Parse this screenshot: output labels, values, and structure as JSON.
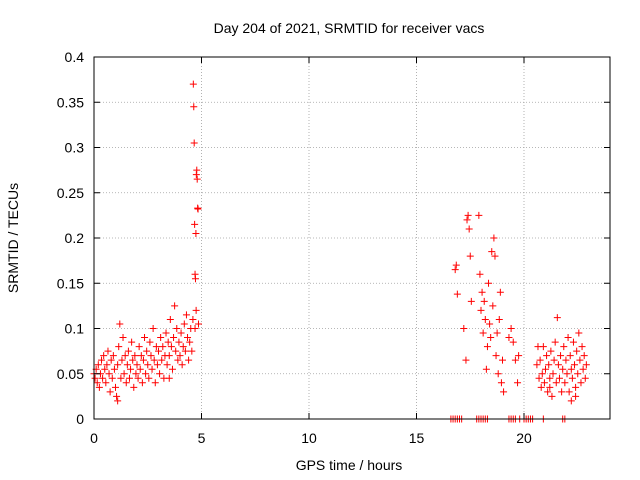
{
  "chart_data": {
    "type": "scatter",
    "title": "Day 204 of 2021, SRMTID for receiver vacs",
    "xlabel": "GPS time / hours",
    "ylabel": "SRMTID / TECUs",
    "xlim": [
      0,
      24
    ],
    "ylim": [
      0,
      0.4
    ],
    "xticks": [
      0,
      5,
      10,
      15,
      20
    ],
    "yticks": [
      0,
      0.05,
      0.1,
      0.15,
      0.2,
      0.25,
      0.3,
      0.35,
      0.4
    ],
    "xtick_labels": [
      "0",
      "5",
      "10",
      "15",
      "20"
    ],
    "ytick_labels": [
      "0",
      "0.05",
      "0.1",
      "0.15",
      "0.2",
      "0.25",
      "0.3",
      "0.35",
      "0.4"
    ],
    "grid": true,
    "marker": "+",
    "color": "#ff0000",
    "series": [
      {
        "name": "SRMTID",
        "points": [
          [
            0.0,
            0.05
          ],
          [
            0.05,
            0.045
          ],
          [
            0.1,
            0.055
          ],
          [
            0.15,
            0.04
          ],
          [
            0.2,
            0.06
          ],
          [
            0.25,
            0.035
          ],
          [
            0.3,
            0.05
          ],
          [
            0.35,
            0.065
          ],
          [
            0.4,
            0.045
          ],
          [
            0.45,
            0.07
          ],
          [
            0.5,
            0.055
          ],
          [
            0.55,
            0.04
          ],
          [
            0.6,
            0.06
          ],
          [
            0.65,
            0.075
          ],
          [
            0.7,
            0.05
          ],
          [
            0.75,
            0.03
          ],
          [
            0.8,
            0.065
          ],
          [
            0.85,
            0.045
          ],
          [
            0.9,
            0.07
          ],
          [
            0.95,
            0.055
          ],
          [
            1.0,
            0.035
          ],
          [
            1.05,
            0.025
          ],
          [
            1.1,
            0.06
          ],
          [
            1.15,
            0.08
          ],
          [
            1.2,
            0.105
          ],
          [
            1.25,
            0.045
          ],
          [
            1.3,
            0.065
          ],
          [
            1.35,
            0.09
          ],
          [
            1.4,
            0.05
          ],
          [
            1.45,
            0.07
          ],
          [
            1.5,
            0.04
          ],
          [
            1.55,
            0.06
          ],
          [
            1.6,
            0.075
          ],
          [
            1.65,
            0.045
          ],
          [
            1.7,
            0.055
          ],
          [
            1.75,
            0.085
          ],
          [
            1.8,
            0.065
          ],
          [
            1.85,
            0.035
          ],
          [
            1.9,
            0.07
          ],
          [
            1.95,
            0.05
          ],
          [
            2.0,
            0.06
          ],
          [
            2.05,
            0.045
          ],
          [
            2.1,
            0.08
          ],
          [
            2.15,
            0.055
          ],
          [
            2.2,
            0.07
          ],
          [
            2.25,
            0.04
          ],
          [
            2.3,
            0.065
          ],
          [
            2.35,
            0.09
          ],
          [
            2.4,
            0.05
          ],
          [
            2.45,
            0.075
          ],
          [
            2.5,
            0.06
          ],
          [
            2.55,
            0.045
          ],
          [
            2.6,
            0.085
          ],
          [
            2.65,
            0.07
          ],
          [
            2.7,
            0.055
          ],
          [
            2.75,
            0.1
          ],
          [
            2.8,
            0.065
          ],
          [
            2.85,
            0.04
          ],
          [
            2.9,
            0.08
          ],
          [
            2.95,
            0.06
          ],
          [
            3.0,
            0.075
          ],
          [
            3.05,
            0.05
          ],
          [
            3.1,
            0.09
          ],
          [
            3.15,
            0.065
          ],
          [
            3.2,
            0.08
          ],
          [
            3.25,
            0.045
          ],
          [
            3.3,
            0.07
          ],
          [
            3.35,
            0.095
          ],
          [
            3.4,
            0.06
          ],
          [
            3.45,
            0.085
          ],
          [
            3.5,
            0.07
          ],
          [
            3.55,
            0.11
          ],
          [
            3.6,
            0.08
          ],
          [
            3.65,
            0.055
          ],
          [
            3.7,
            0.09
          ],
          [
            3.75,
            0.125
          ],
          [
            3.8,
            0.075
          ],
          [
            3.85,
            0.1
          ],
          [
            3.9,
            0.065
          ],
          [
            3.95,
            0.085
          ],
          [
            4.0,
            0.07
          ],
          [
            4.05,
            0.095
          ],
          [
            4.1,
            0.06
          ],
          [
            4.15,
            0.08
          ],
          [
            4.2,
            0.105
          ],
          [
            4.25,
            0.075
          ],
          [
            4.3,
            0.115
          ],
          [
            4.35,
            0.09
          ],
          [
            4.4,
            0.065
          ],
          [
            4.45,
            0.085
          ],
          [
            4.5,
            0.1
          ],
          [
            4.55,
            0.075
          ],
          [
            4.6,
            0.11
          ],
          [
            4.62,
            0.37
          ],
          [
            4.64,
            0.345
          ],
          [
            4.66,
            0.305
          ],
          [
            4.68,
            0.215
          ],
          [
            4.7,
            0.16
          ],
          [
            4.72,
            0.155
          ],
          [
            4.74,
            0.205
          ],
          [
            4.76,
            0.27
          ],
          [
            4.78,
            0.275
          ],
          [
            4.8,
            0.265
          ],
          [
            4.82,
            0.233
          ],
          [
            4.84,
            0.232
          ],
          [
            4.86,
            0.105
          ],
          [
            4.7,
            0.1
          ],
          [
            4.75,
            0.12
          ],
          [
            1.1,
            0.02
          ],
          [
            3.5,
            0.045
          ],
          [
            16.6,
            0.0
          ],
          [
            16.7,
            0.0
          ],
          [
            16.8,
            0.0
          ],
          [
            16.9,
            0.0
          ],
          [
            17.0,
            0.0
          ],
          [
            17.1,
            0.0
          ],
          [
            17.8,
            0.0
          ],
          [
            17.9,
            0.0
          ],
          [
            18.0,
            0.0
          ],
          [
            18.1,
            0.0
          ],
          [
            18.2,
            0.0
          ],
          [
            18.3,
            0.0
          ],
          [
            19.3,
            0.0
          ],
          [
            19.4,
            0.0
          ],
          [
            19.5,
            0.0
          ],
          [
            19.6,
            0.0
          ],
          [
            19.8,
            0.0
          ],
          [
            20.0,
            0.0
          ],
          [
            20.1,
            0.0
          ],
          [
            20.2,
            0.0
          ],
          [
            20.3,
            0.0
          ],
          [
            20.4,
            0.0
          ],
          [
            20.9,
            0.0
          ],
          [
            21.8,
            0.0
          ],
          [
            21.9,
            0.0
          ],
          [
            16.8,
            0.165
          ],
          [
            16.85,
            0.17
          ],
          [
            16.9,
            0.138
          ],
          [
            17.2,
            0.1
          ],
          [
            17.3,
            0.065
          ],
          [
            17.35,
            0.22
          ],
          [
            17.4,
            0.225
          ],
          [
            17.45,
            0.21
          ],
          [
            17.5,
            0.18
          ],
          [
            17.55,
            0.13
          ],
          [
            17.9,
            0.225
          ],
          [
            17.95,
            0.16
          ],
          [
            18.0,
            0.12
          ],
          [
            18.05,
            0.14
          ],
          [
            18.1,
            0.095
          ],
          [
            18.15,
            0.13
          ],
          [
            18.2,
            0.11
          ],
          [
            18.25,
            0.055
          ],
          [
            18.3,
            0.08
          ],
          [
            18.35,
            0.15
          ],
          [
            18.4,
            0.105
          ],
          [
            18.45,
            0.09
          ],
          [
            18.5,
            0.185
          ],
          [
            18.55,
            0.125
          ],
          [
            18.6,
            0.2
          ],
          [
            18.65,
            0.18
          ],
          [
            18.7,
            0.07
          ],
          [
            18.75,
            0.095
          ],
          [
            18.8,
            0.05
          ],
          [
            18.85,
            0.11
          ],
          [
            18.9,
            0.14
          ],
          [
            18.95,
            0.04
          ],
          [
            19.0,
            0.065
          ],
          [
            19.05,
            0.03
          ],
          [
            19.3,
            0.09
          ],
          [
            19.4,
            0.1
          ],
          [
            19.5,
            0.085
          ],
          [
            19.6,
            0.065
          ],
          [
            19.7,
            0.04
          ],
          [
            19.75,
            0.07
          ],
          [
            20.6,
            0.06
          ],
          [
            20.65,
            0.08
          ],
          [
            20.7,
            0.045
          ],
          [
            20.75,
            0.065
          ],
          [
            20.8,
            0.035
          ],
          [
            20.85,
            0.05
          ],
          [
            20.9,
            0.08
          ],
          [
            20.95,
            0.04
          ],
          [
            21.0,
            0.055
          ],
          [
            21.05,
            0.07
          ],
          [
            21.1,
            0.03
          ],
          [
            21.15,
            0.06
          ],
          [
            21.2,
            0.045
          ],
          [
            21.25,
            0.075
          ],
          [
            21.3,
            0.025
          ],
          [
            21.35,
            0.05
          ],
          [
            21.4,
            0.065
          ],
          [
            21.45,
            0.085
          ],
          [
            21.5,
            0.04
          ],
          [
            21.55,
            0.112
          ],
          [
            21.6,
            0.06
          ],
          [
            21.65,
            0.045
          ],
          [
            21.7,
            0.07
          ],
          [
            21.75,
            0.03
          ],
          [
            21.8,
            0.055
          ],
          [
            21.85,
            0.08
          ],
          [
            21.9,
            0.04
          ],
          [
            21.95,
            0.065
          ],
          [
            22.0,
            0.05
          ],
          [
            22.05,
            0.09
          ],
          [
            22.1,
            0.03
          ],
          [
            22.15,
            0.07
          ],
          [
            22.2,
            0.055
          ],
          [
            22.25,
            0.045
          ],
          [
            22.3,
            0.085
          ],
          [
            22.35,
            0.06
          ],
          [
            22.4,
            0.035
          ],
          [
            22.45,
            0.075
          ],
          [
            22.5,
            0.05
          ],
          [
            22.55,
            0.095
          ],
          [
            22.6,
            0.065
          ],
          [
            22.65,
            0.04
          ],
          [
            22.7,
            0.08
          ],
          [
            22.75,
            0.055
          ],
          [
            22.8,
            0.07
          ],
          [
            22.85,
            0.045
          ],
          [
            22.9,
            0.06
          ],
          [
            22.2,
            0.02
          ],
          [
            22.4,
            0.025
          ],
          [
            21.2,
            0.035
          ]
        ]
      }
    ]
  }
}
